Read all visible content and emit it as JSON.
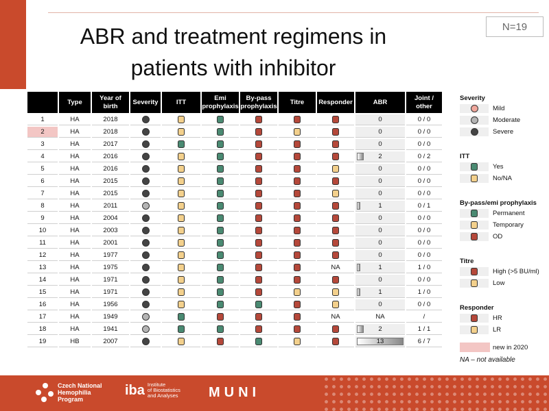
{
  "slide": {
    "title_line1": "ABR and treatment regimens in",
    "title_line2": "patients with inhibitor",
    "n_label": "N=19"
  },
  "colors": {
    "mild": "#f0a79c",
    "moderate": "#b4b4b4",
    "severe": "#444444",
    "yes_green": "#4a8a72",
    "no_yellow": "#f3d08c",
    "od_red": "#b5483a",
    "new_pink": "#f3c6c4",
    "brand_red": "#c94a2c"
  },
  "table": {
    "headers": [
      "",
      "Type",
      "Year of birth",
      "Severity",
      "ITT",
      "Emi prophylaxis",
      "By-pass prophylaxis",
      "Titre",
      "Responder",
      "ABR",
      "Joint / other"
    ],
    "rows": [
      {
        "no": "1",
        "type": "HA",
        "year": "2018",
        "severity": "severe",
        "itt": "no",
        "emi": "yes",
        "bypass": "od",
        "titre": "high",
        "responder": "hr",
        "abr": "0",
        "abr_value": 0,
        "joint": "0 / 0",
        "new": false
      },
      {
        "no": "2",
        "type": "HA",
        "year": "2018",
        "severity": "severe",
        "itt": "no",
        "emi": "yes",
        "bypass": "od",
        "titre": "low",
        "responder": "hr",
        "abr": "0",
        "abr_value": 0,
        "joint": "0 / 0",
        "new": true
      },
      {
        "no": "3",
        "type": "HA",
        "year": "2017",
        "severity": "severe",
        "itt": "yes",
        "emi": "yes",
        "bypass": "od",
        "titre": "high",
        "responder": "hr",
        "abr": "0",
        "abr_value": 0,
        "joint": "0 / 0",
        "new": false
      },
      {
        "no": "4",
        "type": "HA",
        "year": "2016",
        "severity": "severe",
        "itt": "no",
        "emi": "yes",
        "bypass": "od",
        "titre": "high",
        "responder": "hr",
        "abr": "2",
        "abr_value": 2,
        "joint": "0 / 2",
        "new": false
      },
      {
        "no": "5",
        "type": "HA",
        "year": "2016",
        "severity": "severe",
        "itt": "no",
        "emi": "yes",
        "bypass": "od",
        "titre": "high",
        "responder": "lr",
        "abr": "0",
        "abr_value": 0,
        "joint": "0 / 0",
        "new": false
      },
      {
        "no": "6",
        "type": "HA",
        "year": "2015",
        "severity": "severe",
        "itt": "no",
        "emi": "yes",
        "bypass": "od",
        "titre": "high",
        "responder": "hr",
        "abr": "0",
        "abr_value": 0,
        "joint": "0 / 0",
        "new": false
      },
      {
        "no": "7",
        "type": "HA",
        "year": "2015",
        "severity": "severe",
        "itt": "no",
        "emi": "yes",
        "bypass": "od",
        "titre": "high",
        "responder": "lr",
        "abr": "0",
        "abr_value": 0,
        "joint": "0 / 0",
        "new": false
      },
      {
        "no": "8",
        "type": "HA",
        "year": "2011",
        "severity": "moderate",
        "itt": "no",
        "emi": "yes",
        "bypass": "od",
        "titre": "high",
        "responder": "hr",
        "abr": "1",
        "abr_value": 1,
        "joint": "0 / 1",
        "new": false
      },
      {
        "no": "9",
        "type": "HA",
        "year": "2004",
        "severity": "severe",
        "itt": "no",
        "emi": "yes",
        "bypass": "od",
        "titre": "high",
        "responder": "hr",
        "abr": "0",
        "abr_value": 0,
        "joint": "0 / 0",
        "new": false
      },
      {
        "no": "10",
        "type": "HA",
        "year": "2003",
        "severity": "severe",
        "itt": "no",
        "emi": "yes",
        "bypass": "od",
        "titre": "high",
        "responder": "hr",
        "abr": "0",
        "abr_value": 0,
        "joint": "0 / 0",
        "new": false
      },
      {
        "no": "11",
        "type": "HA",
        "year": "2001",
        "severity": "severe",
        "itt": "no",
        "emi": "yes",
        "bypass": "od",
        "titre": "high",
        "responder": "hr",
        "abr": "0",
        "abr_value": 0,
        "joint": "0 / 0",
        "new": false
      },
      {
        "no": "12",
        "type": "HA",
        "year": "1977",
        "severity": "severe",
        "itt": "no",
        "emi": "yes",
        "bypass": "od",
        "titre": "high",
        "responder": "hr",
        "abr": "0",
        "abr_value": 0,
        "joint": "0 / 0",
        "new": false
      },
      {
        "no": "13",
        "type": "HA",
        "year": "1975",
        "severity": "severe",
        "itt": "no",
        "emi": "yes",
        "bypass": "od",
        "titre": "high",
        "responder": "na",
        "abr": "1",
        "abr_value": 1,
        "joint": "1 / 0",
        "new": false
      },
      {
        "no": "14",
        "type": "HA",
        "year": "1971",
        "severity": "severe",
        "itt": "no",
        "emi": "yes",
        "bypass": "od",
        "titre": "high",
        "responder": "hr",
        "abr": "0",
        "abr_value": 0,
        "joint": "0 / 0",
        "new": false
      },
      {
        "no": "15",
        "type": "HA",
        "year": "1971",
        "severity": "severe",
        "itt": "no",
        "emi": "yes",
        "bypass": "od",
        "titre": "low",
        "responder": "lr",
        "abr": "1",
        "abr_value": 1,
        "joint": "1 / 0",
        "new": false
      },
      {
        "no": "16",
        "type": "HA",
        "year": "1956",
        "severity": "severe",
        "itt": "no",
        "emi": "yes",
        "bypass": "yes",
        "titre": "high",
        "responder": "lr",
        "abr": "0",
        "abr_value": 0,
        "joint": "0 / 0",
        "new": false
      },
      {
        "no": "17",
        "type": "HA",
        "year": "1949",
        "severity": "moderate",
        "itt": "yes",
        "emi": "od",
        "bypass": "od",
        "titre": "high",
        "responder": "na",
        "abr": "NA",
        "abr_value": null,
        "joint": "/",
        "new": false
      },
      {
        "no": "18",
        "type": "HA",
        "year": "1941",
        "severity": "moderate",
        "itt": "yes",
        "emi": "yes",
        "bypass": "od",
        "titre": "high",
        "responder": "hr",
        "abr": "2",
        "abr_value": 2,
        "joint": "1 / 1",
        "new": false
      },
      {
        "no": "19",
        "type": "HB",
        "year": "2007",
        "severity": "severe",
        "itt": "no",
        "emi": "od",
        "bypass": "yes",
        "titre": "low",
        "responder": "hr",
        "abr": "13",
        "abr_value": 13,
        "joint": "6 / 7",
        "new": false
      }
    ],
    "na_text": "NA",
    "abr_max": 13
  },
  "legend": {
    "severity": {
      "title": "Severity",
      "items": [
        {
          "label": "Mild",
          "color": "#f0a79c"
        },
        {
          "label": "Moderate",
          "color": "#b4b4b4"
        },
        {
          "label": "Severe",
          "color": "#444444"
        }
      ]
    },
    "itt": {
      "title": "ITT",
      "items": [
        {
          "label": "Yes",
          "color": "#4a8a72"
        },
        {
          "label": "No/NA",
          "color": "#f3d08c"
        }
      ]
    },
    "prophylaxis": {
      "title": "By-pass/emi prophylaxis",
      "items": [
        {
          "label": "Permanent",
          "color": "#4a8a72"
        },
        {
          "label": "Temporary",
          "color": "#f3d08c"
        },
        {
          "label": "OD",
          "color": "#b5483a"
        }
      ]
    },
    "titre": {
      "title": "Titre",
      "items": [
        {
          "label": "High (>5 BU/ml)",
          "color": "#b5483a"
        },
        {
          "label": "Low",
          "color": "#f3d08c"
        }
      ]
    },
    "responder": {
      "title": "Responder",
      "items": [
        {
          "label": "HR",
          "color": "#b5483a"
        },
        {
          "label": "LR",
          "color": "#f3d08c"
        }
      ]
    },
    "new_label": "new in 2020",
    "na_note": "NA – not available"
  },
  "footer": {
    "cnhp_line1": "Czech National",
    "cnhp_line2": "Hemophilia",
    "cnhp_line3": "Program",
    "iba_mark": "iba",
    "iba_line1": "Institute",
    "iba_line2": "of Biostatistics",
    "iba_line3": "and Analyses",
    "muni": "MUNI"
  }
}
